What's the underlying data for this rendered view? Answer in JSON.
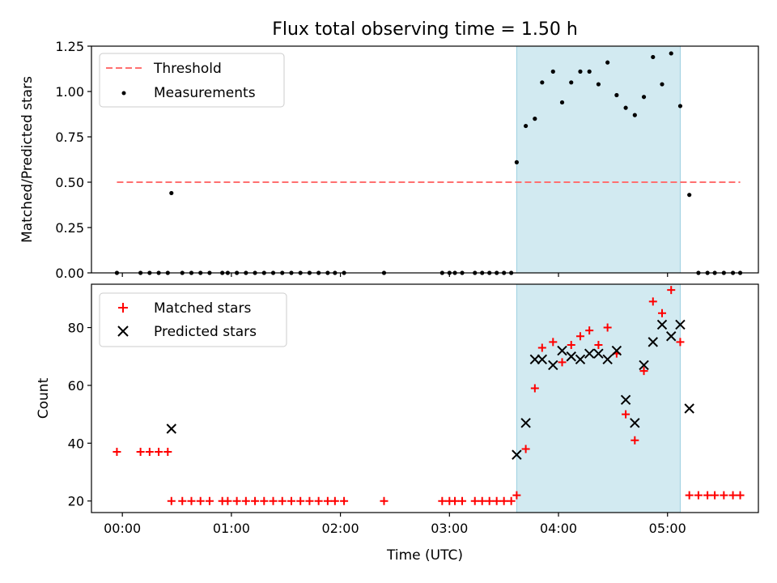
{
  "figure": {
    "title": "Flux total observing time = 1.50 h",
    "xlabel": "Time (UTC)",
    "x_ticks": [
      "00:00",
      "01:00",
      "02:00",
      "03:00",
      "04:00",
      "05:00"
    ]
  },
  "chart_data": [
    {
      "type": "scatter",
      "title": "Flux total observing time = 1.50 h",
      "xlabel": "",
      "ylabel": "Matched/Predicted stars",
      "xlim": [
        "-00:17",
        "05:50"
      ],
      "ylim": [
        0,
        1.25
      ],
      "y_ticks": [
        "0.00",
        "0.25",
        "0.50",
        "0.75",
        "1.00",
        "1.25"
      ],
      "grid": false,
      "legend_position": "upper-left",
      "highlight_band": {
        "start": "03:37",
        "end": "05:07",
        "color": "#add8e6"
      },
      "threshold": {
        "name": "Threshold",
        "value": 0.5,
        "x_start": "-00:03",
        "x_end": "05:40",
        "color": "#ff7070",
        "style": "dashed"
      },
      "series": [
        {
          "name": "Measurements",
          "marker": "dot",
          "color": "#000000",
          "points": [
            [
              "-00:03",
              0
            ],
            [
              "00:10",
              0
            ],
            [
              "00:15",
              0
            ],
            [
              "00:20",
              0
            ],
            [
              "00:25",
              0
            ],
            [
              "00:27",
              0.44
            ],
            [
              "00:33",
              0
            ],
            [
              "00:38",
              0
            ],
            [
              "00:43",
              0
            ],
            [
              "00:48",
              0
            ],
            [
              "00:55",
              0
            ],
            [
              "00:58",
              0
            ],
            [
              "01:03",
              0
            ],
            [
              "01:08",
              0
            ],
            [
              "01:13",
              0
            ],
            [
              "01:18",
              0
            ],
            [
              "01:23",
              0
            ],
            [
              "01:28",
              0
            ],
            [
              "01:33",
              0
            ],
            [
              "01:38",
              0
            ],
            [
              "01:43",
              0
            ],
            [
              "01:48",
              0
            ],
            [
              "01:53",
              0
            ],
            [
              "01:57",
              0
            ],
            [
              "02:02",
              0
            ],
            [
              "02:24",
              0
            ],
            [
              "02:56",
              0
            ],
            [
              "03:00",
              0
            ],
            [
              "03:03",
              0
            ],
            [
              "03:07",
              0
            ],
            [
              "03:14",
              0
            ],
            [
              "03:18",
              0
            ],
            [
              "03:22",
              0
            ],
            [
              "03:26",
              0
            ],
            [
              "03:30",
              0
            ],
            [
              "03:34",
              0
            ],
            [
              "03:37",
              0.61
            ],
            [
              "03:42",
              0.81
            ],
            [
              "03:47",
              0.85
            ],
            [
              "03:51",
              1.05
            ],
            [
              "03:57",
              1.11
            ],
            [
              "04:02",
              0.94
            ],
            [
              "04:07",
              1.05
            ],
            [
              "04:12",
              1.11
            ],
            [
              "04:17",
              1.11
            ],
            [
              "04:22",
              1.04
            ],
            [
              "04:27",
              1.16
            ],
            [
              "04:32",
              0.98
            ],
            [
              "04:37",
              0.91
            ],
            [
              "04:42",
              0.87
            ],
            [
              "04:47",
              0.97
            ],
            [
              "04:52",
              1.19
            ],
            [
              "04:57",
              1.04
            ],
            [
              "05:02",
              1.21
            ],
            [
              "05:07",
              0.92
            ],
            [
              "05:12",
              0.43
            ],
            [
              "05:17",
              0
            ],
            [
              "05:22",
              0
            ],
            [
              "05:26",
              0
            ],
            [
              "05:31",
              0
            ],
            [
              "05:36",
              0
            ],
            [
              "05:40",
              0
            ]
          ]
        }
      ]
    },
    {
      "type": "scatter",
      "xlabel": "Time (UTC)",
      "ylabel": "Count",
      "xlim": [
        "-00:17",
        "05:50"
      ],
      "ylim": [
        16,
        95
      ],
      "y_ticks": [
        "20",
        "40",
        "60",
        "80"
      ],
      "grid": false,
      "legend_position": "upper-left",
      "highlight_band": {
        "start": "03:37",
        "end": "05:07",
        "color": "#add8e6"
      },
      "series": [
        {
          "name": "Matched stars",
          "marker": "plus",
          "color": "#ff0000",
          "points": [
            [
              "-00:03",
              37
            ],
            [
              "00:10",
              37
            ],
            [
              "00:15",
              37
            ],
            [
              "00:20",
              37
            ],
            [
              "00:25",
              37
            ],
            [
              "00:27",
              20
            ],
            [
              "00:33",
              20
            ],
            [
              "00:38",
              20
            ],
            [
              "00:43",
              20
            ],
            [
              "00:48",
              20
            ],
            [
              "00:55",
              20
            ],
            [
              "00:58",
              20
            ],
            [
              "01:03",
              20
            ],
            [
              "01:08",
              20
            ],
            [
              "01:13",
              20
            ],
            [
              "01:18",
              20
            ],
            [
              "01:23",
              20
            ],
            [
              "01:28",
              20
            ],
            [
              "01:33",
              20
            ],
            [
              "01:38",
              20
            ],
            [
              "01:43",
              20
            ],
            [
              "01:48",
              20
            ],
            [
              "01:53",
              20
            ],
            [
              "01:57",
              20
            ],
            [
              "02:02",
              20
            ],
            [
              "02:24",
              20
            ],
            [
              "02:56",
              20
            ],
            [
              "03:00",
              20
            ],
            [
              "03:03",
              20
            ],
            [
              "03:07",
              20
            ],
            [
              "03:14",
              20
            ],
            [
              "03:18",
              20
            ],
            [
              "03:22",
              20
            ],
            [
              "03:26",
              20
            ],
            [
              "03:30",
              20
            ],
            [
              "03:34",
              20
            ],
            [
              "03:37",
              22
            ],
            [
              "03:42",
              38
            ],
            [
              "03:47",
              59
            ],
            [
              "03:51",
              73
            ],
            [
              "03:57",
              75
            ],
            [
              "04:02",
              68
            ],
            [
              "04:07",
              74
            ],
            [
              "04:12",
              77
            ],
            [
              "04:17",
              79
            ],
            [
              "04:22",
              74
            ],
            [
              "04:27",
              80
            ],
            [
              "04:32",
              71
            ],
            [
              "04:37",
              50
            ],
            [
              "04:42",
              41
            ],
            [
              "04:47",
              65
            ],
            [
              "04:52",
              89
            ],
            [
              "04:57",
              85
            ],
            [
              "05:02",
              93
            ],
            [
              "05:07",
              75
            ],
            [
              "05:12",
              22
            ],
            [
              "05:17",
              22
            ],
            [
              "05:22",
              22
            ],
            [
              "05:26",
              22
            ],
            [
              "05:31",
              22
            ],
            [
              "05:36",
              22
            ],
            [
              "05:40",
              22
            ]
          ]
        },
        {
          "name": "Predicted stars",
          "marker": "x",
          "color": "#000000",
          "points": [
            [
              "00:27",
              45
            ],
            [
              "03:37",
              36
            ],
            [
              "03:42",
              47
            ],
            [
              "03:47",
              69
            ],
            [
              "03:51",
              69
            ],
            [
              "03:57",
              67
            ],
            [
              "04:02",
              72
            ],
            [
              "04:07",
              70
            ],
            [
              "04:12",
              69
            ],
            [
              "04:17",
              71
            ],
            [
              "04:22",
              71
            ],
            [
              "04:27",
              69
            ],
            [
              "04:32",
              72
            ],
            [
              "04:37",
              55
            ],
            [
              "04:42",
              47
            ],
            [
              "04:47",
              67
            ],
            [
              "04:52",
              75
            ],
            [
              "04:57",
              81
            ],
            [
              "05:02",
              77
            ],
            [
              "05:07",
              81
            ],
            [
              "05:12",
              52
            ]
          ]
        }
      ]
    }
  ]
}
